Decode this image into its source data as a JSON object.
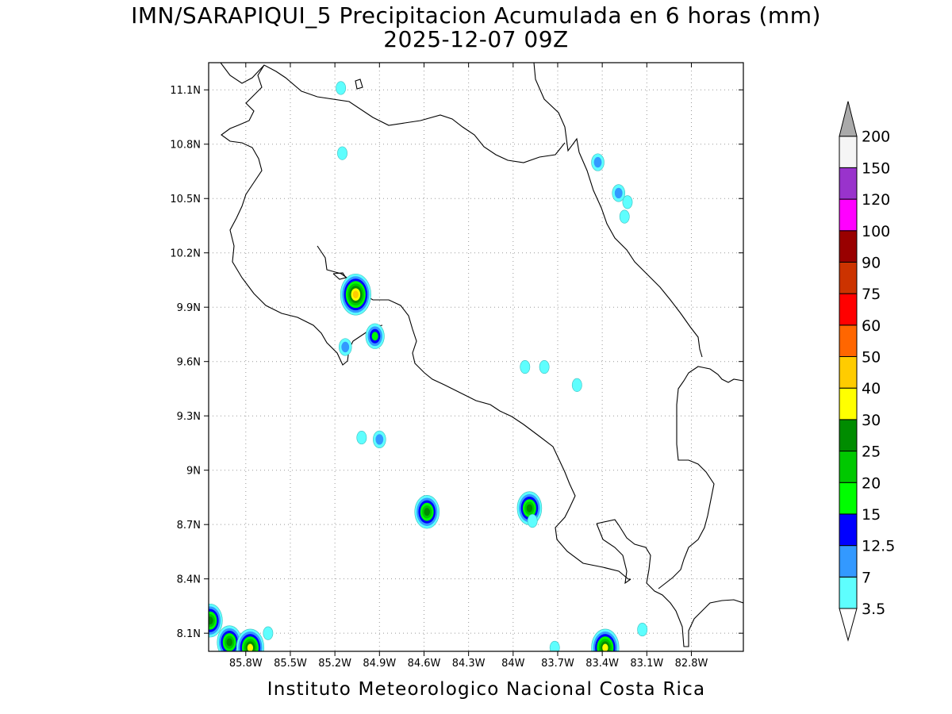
{
  "title": {
    "line1": "IMN/SARAPIQUI_5 Precipitacion Acumulada en 6 horas (mm)",
    "line2": "2025-12-07 09Z"
  },
  "footer": "Instituto Meteorologico Nacional Costa Rica",
  "map": {
    "lon_range": [
      -86.05,
      -82.45
    ],
    "lat_range": [
      8.0,
      11.25
    ],
    "lon_ticks": [
      {
        "value": -85.8,
        "label": "85.8W"
      },
      {
        "value": -85.5,
        "label": "85.5W"
      },
      {
        "value": -85.2,
        "label": "85.2W"
      },
      {
        "value": -84.9,
        "label": "84.9W"
      },
      {
        "value": -84.6,
        "label": "84.6W"
      },
      {
        "value": -84.3,
        "label": "84.3W"
      },
      {
        "value": -84.0,
        "label": "84W"
      },
      {
        "value": -83.7,
        "label": "83.7W"
      },
      {
        "value": -83.4,
        "label": "83.4W"
      },
      {
        "value": -83.1,
        "label": "83.1W"
      },
      {
        "value": -82.8,
        "label": "82.8W"
      }
    ],
    "lat_ticks": [
      {
        "value": 8.1,
        "label": "8.1N"
      },
      {
        "value": 8.4,
        "label": "8.4N"
      },
      {
        "value": 8.7,
        "label": "8.7N"
      },
      {
        "value": 9.0,
        "label": "9N"
      },
      {
        "value": 9.3,
        "label": "9.3N"
      },
      {
        "value": 9.6,
        "label": "9.6N"
      },
      {
        "value": 9.9,
        "label": "9.9N"
      },
      {
        "value": 10.2,
        "label": "10.2N"
      },
      {
        "value": 10.5,
        "label": "10.5N"
      },
      {
        "value": 10.8,
        "label": "10.8N"
      },
      {
        "value": 11.1,
        "label": "11.1N"
      }
    ],
    "grid": true,
    "precip_cells": [
      {
        "lon": -85.06,
        "lat": 9.97,
        "level": 40
      },
      {
        "lon": -84.93,
        "lat": 9.74,
        "level": 15
      },
      {
        "lon": -84.58,
        "lat": 8.77,
        "level": 25
      },
      {
        "lon": -83.89,
        "lat": 8.79,
        "level": 25
      },
      {
        "lon": -83.38,
        "lat": 8.02,
        "level": 30
      },
      {
        "lon": -85.91,
        "lat": 8.05,
        "level": 25
      },
      {
        "lon": -85.77,
        "lat": 8.02,
        "level": 30
      },
      {
        "lon": -86.04,
        "lat": 8.17,
        "level": 25
      },
      {
        "lon": -84.9,
        "lat": 9.17,
        "level": 7
      },
      {
        "lon": -85.02,
        "lat": 9.18,
        "level": 3.5
      },
      {
        "lon": -83.43,
        "lat": 10.7,
        "level": 7
      },
      {
        "lon": -83.29,
        "lat": 10.53,
        "level": 7
      },
      {
        "lon": -85.15,
        "lat": 10.75,
        "level": 3.5
      },
      {
        "lon": -85.16,
        "lat": 11.11,
        "level": 3.5
      },
      {
        "lon": -83.92,
        "lat": 9.57,
        "level": 3.5
      },
      {
        "lon": -83.79,
        "lat": 9.57,
        "level": 3.5
      },
      {
        "lon": -83.57,
        "lat": 9.47,
        "level": 3.5
      },
      {
        "lon": -85.13,
        "lat": 9.68,
        "level": 7
      },
      {
        "lon": -83.25,
        "lat": 10.4,
        "level": 3.5
      },
      {
        "lon": -83.23,
        "lat": 10.48,
        "level": 3.5
      },
      {
        "lon": -83.13,
        "lat": 8.12,
        "level": 3.5
      },
      {
        "lon": -85.65,
        "lat": 8.1,
        "level": 3.5
      },
      {
        "lon": -83.72,
        "lat": 8.02,
        "level": 3.5
      },
      {
        "lon": -83.87,
        "lat": 8.72,
        "level": 3.5
      }
    ]
  },
  "colorbar": {
    "levels": [
      {
        "label": "3.5",
        "color": "#5efefe"
      },
      {
        "label": "7",
        "color": "#3399ff"
      },
      {
        "label": "12.5",
        "color": "#0000ff"
      },
      {
        "label": "15",
        "color": "#00fe00"
      },
      {
        "label": "20",
        "color": "#00c800"
      },
      {
        "label": "25",
        "color": "#008c00"
      },
      {
        "label": "30",
        "color": "#ffff00"
      },
      {
        "label": "40",
        "color": "#ffcc00"
      },
      {
        "label": "50",
        "color": "#ff6600"
      },
      {
        "label": "60",
        "color": "#ff0000"
      },
      {
        "label": "75",
        "color": "#cc3300"
      },
      {
        "label": "90",
        "color": "#990000"
      },
      {
        "label": "100",
        "color": "#ff00ff"
      },
      {
        "label": "120",
        "color": "#9933cc"
      },
      {
        "label": "150",
        "color": "#f5f5f5"
      },
      {
        "label": "200",
        "color": "#aaaaaa"
      }
    ]
  }
}
